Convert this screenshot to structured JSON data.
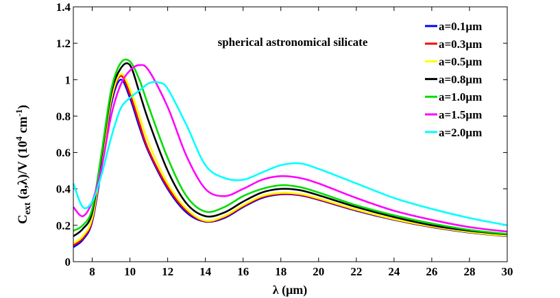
{
  "chart_data": {
    "type": "line",
    "annotation": "spherical astronomical silicate",
    "xlabel": "λ (μm)",
    "ylabel": {
      "main": "C",
      "sub": "ext",
      "mid": " (a,λ)/V (10",
      "sup1": "4",
      "mid2": " cm",
      "sup2": "-1",
      "end": ")"
    },
    "xlim": [
      7,
      30
    ],
    "ylim": [
      0,
      1.4
    ],
    "xticks": [
      8,
      10,
      12,
      14,
      16,
      18,
      20,
      22,
      24,
      26,
      28,
      30
    ],
    "yticks": [
      0,
      0.2,
      0.4,
      0.6,
      0.8,
      1,
      1.2,
      1.4
    ],
    "xtick_labels": [
      "8",
      "10",
      "12",
      "14",
      "16",
      "18",
      "20",
      "22",
      "24",
      "26",
      "28",
      "30"
    ],
    "ytick_labels": [
      "0",
      "0.2",
      "0.4",
      "0.6",
      "0.8",
      "1",
      "1.2",
      "1.4"
    ],
    "legend_position": "top-right",
    "series": [
      {
        "name": "a=0.1μm",
        "color": "#0000ff",
        "x": [
          7,
          7.5,
          8,
          8.5,
          9,
          9.5,
          10,
          10.5,
          11,
          12,
          13,
          14,
          15,
          16,
          17,
          18,
          19,
          20,
          22,
          24,
          26,
          28,
          30
        ],
        "y": [
          0.08,
          0.12,
          0.22,
          0.52,
          0.86,
          1.0,
          0.9,
          0.74,
          0.6,
          0.4,
          0.27,
          0.22,
          0.24,
          0.3,
          0.35,
          0.37,
          0.365,
          0.34,
          0.28,
          0.23,
          0.19,
          0.16,
          0.14
        ]
      },
      {
        "name": "a=0.3μm",
        "color": "#ff0000",
        "x": [
          7,
          7.5,
          8,
          8.5,
          9,
          9.5,
          10,
          10.5,
          11,
          12,
          13,
          14,
          15,
          16,
          17,
          18,
          19,
          20,
          22,
          24,
          26,
          28,
          30
        ],
        "y": [
          0.09,
          0.13,
          0.23,
          0.54,
          0.88,
          1.02,
          0.92,
          0.76,
          0.61,
          0.41,
          0.28,
          0.222,
          0.245,
          0.305,
          0.355,
          0.373,
          0.368,
          0.343,
          0.283,
          0.232,
          0.192,
          0.162,
          0.141
        ]
      },
      {
        "name": "a=0.5μm",
        "color": "#ffff00",
        "x": [
          7,
          7.5,
          8,
          8.5,
          9,
          9.5,
          10,
          10.5,
          11,
          12,
          13,
          14,
          15,
          16,
          17,
          18,
          19,
          20,
          22,
          24,
          26,
          28,
          30
        ],
        "y": [
          0.1,
          0.14,
          0.24,
          0.55,
          0.89,
          1.03,
          0.95,
          0.8,
          0.65,
          0.43,
          0.29,
          0.225,
          0.25,
          0.31,
          0.36,
          0.378,
          0.372,
          0.347,
          0.286,
          0.234,
          0.194,
          0.163,
          0.142
        ]
      },
      {
        "name": "a=0.8μm",
        "color": "#000000",
        "x": [
          7,
          7.5,
          8,
          8.5,
          9,
          9.5,
          10,
          10.5,
          11,
          12,
          13,
          14,
          15,
          16,
          17,
          18,
          19,
          20,
          22,
          24,
          26,
          28,
          30
        ],
        "y": [
          0.14,
          0.18,
          0.27,
          0.58,
          0.92,
          1.06,
          1.08,
          0.93,
          0.77,
          0.5,
          0.32,
          0.25,
          0.27,
          0.33,
          0.38,
          0.4,
          0.393,
          0.365,
          0.3,
          0.245,
          0.2,
          0.17,
          0.15
        ]
      },
      {
        "name": "a=1.0μm",
        "color": "#00dd00",
        "x": [
          7,
          7.5,
          8,
          8.5,
          9,
          9.5,
          10,
          10.5,
          11,
          12,
          13,
          14,
          15,
          16,
          17,
          18,
          19,
          20,
          22,
          24,
          26,
          28,
          30
        ],
        "y": [
          0.17,
          0.2,
          0.29,
          0.6,
          0.94,
          1.09,
          1.1,
          1.0,
          0.85,
          0.57,
          0.36,
          0.275,
          0.3,
          0.36,
          0.4,
          0.42,
          0.41,
          0.38,
          0.31,
          0.255,
          0.21,
          0.175,
          0.152
        ]
      },
      {
        "name": "a=1.5μm",
        "color": "#ff00ff",
        "x": [
          7,
          7.5,
          8,
          8.5,
          9,
          9.5,
          10,
          10.5,
          11,
          12,
          13,
          14,
          15,
          16,
          17,
          18,
          19,
          20,
          22,
          24,
          26,
          28,
          30
        ],
        "y": [
          0.3,
          0.25,
          0.33,
          0.52,
          0.8,
          0.97,
          1.05,
          1.08,
          1.05,
          0.85,
          0.58,
          0.4,
          0.36,
          0.4,
          0.45,
          0.47,
          0.46,
          0.43,
          0.35,
          0.28,
          0.23,
          0.19,
          0.165
        ]
      },
      {
        "name": "a=2.0μm",
        "color": "#00ffff",
        "x": [
          7,
          7.5,
          8,
          8.5,
          9,
          9.5,
          10,
          10.5,
          11,
          11.5,
          12,
          13,
          14,
          15,
          16,
          17,
          18,
          19,
          20,
          22,
          24,
          26,
          28,
          30
        ],
        "y": [
          0.43,
          0.3,
          0.33,
          0.48,
          0.68,
          0.84,
          0.9,
          0.94,
          0.98,
          0.985,
          0.95,
          0.75,
          0.53,
          0.46,
          0.45,
          0.49,
          0.53,
          0.54,
          0.51,
          0.43,
          0.35,
          0.29,
          0.24,
          0.2
        ]
      }
    ]
  }
}
